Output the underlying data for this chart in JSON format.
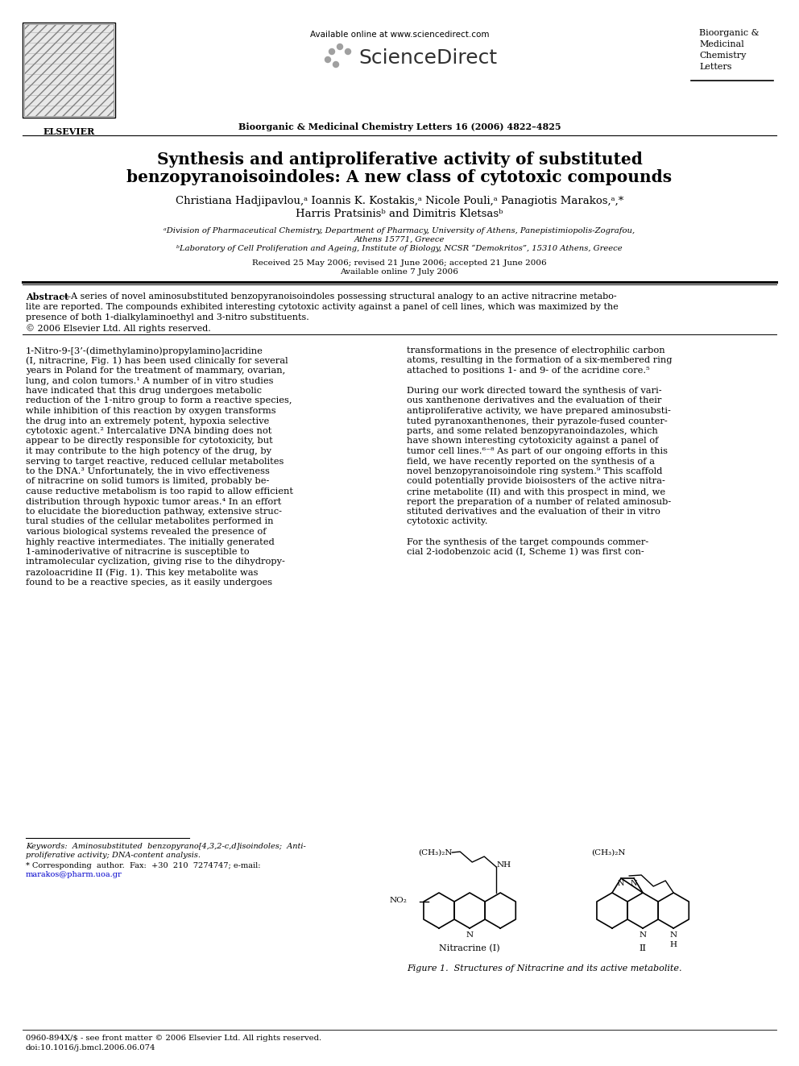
{
  "bg_color": "#ffffff",
  "title_line1": "Synthesis and antiproliferative activity of substituted",
  "title_line2": "benzopyranoisoindoles: A new class of cytotoxic compounds",
  "authors_line1": "Christiana Hadjipavlou,ᵃ Ioannis K. Kostakis,ᵃ Nicole Pouli,ᵃ Panagiotis Marakos,ᵃ,*",
  "authors_line2": "Harris Pratsinisᵇ and Dimitris Kletsasᵇ",
  "affil_a": "ᵃDivision of Pharmaceutical Chemistry, Department of Pharmacy, University of Athens, Panepistimiopolis-Zografou,",
  "affil_a2": "Athens 15771, Greece",
  "affil_b": "ᵇLaboratory of Cell Proliferation and Ageing, Institute of Biology, NCSR “Demokritos”, 15310 Athens, Greece",
  "received": "Received 25 May 2006; revised 21 June 2006; accepted 21 June 2006",
  "available": "Available online 7 July 2006",
  "journal_header": "Bioorganic & Medicinal Chemistry Letters 16 (2006) 4822–4825",
  "available_online": "Available online at www.sciencedirect.com",
  "journal_right_line1": "Bioorganic &",
  "journal_right_line2": "Medicinal",
  "journal_right_line3": "Chemistry",
  "journal_right_line4": "Letters",
  "elsevier_text": "ELSEVIER",
  "abstract_line1": "Abstract—A series of novel aminosubstituted benzopyranoisoindoles possessing structural analogy to an active nitracrine metabo-",
  "abstract_line2": "lite are reported. The compounds exhibited interesting cytotoxic activity against a panel of cell lines, which was maximized by the",
  "abstract_line3": "presence of both 1-dialkylaminoethyl and 3-nitro substituents.",
  "abstract_line4": "© 2006 Elsevier Ltd. All rights reserved.",
  "left_col": [
    "1-Nitro-9-[3’-(dimethylamino)propylamino]acridine",
    "(I, nitracrine, Fig. 1) has been used clinically for several",
    "years in Poland for the treatment of mammary, ovarian,",
    "lung, and colon tumors.¹ A number of in vitro studies",
    "have indicated that this drug undergoes metabolic",
    "reduction of the 1-nitro group to form a reactive species,",
    "while inhibition of this reaction by oxygen transforms",
    "the drug into an extremely potent, hypoxia selective",
    "cytotoxic agent.² Intercalative DNA binding does not",
    "appear to be directly responsible for cytotoxicity, but",
    "it may contribute to the high potency of the drug, by",
    "serving to target reactive, reduced cellular metabolites",
    "to the DNA.³ Unfortunately, the in vivo effectiveness",
    "of nitracrine on solid tumors is limited, probably be-",
    "cause reductive metabolism is too rapid to allow efficient",
    "distribution through hypoxic tumor areas.⁴ In an effort",
    "to elucidate the bioreduction pathway, extensive struc-",
    "tural studies of the cellular metabolites performed in",
    "various biological systems revealed the presence of",
    "highly reactive intermediates. The initially generated",
    "1-aminoderivative of nitracrine is susceptible to",
    "intramolecular cyclization, giving rise to the dihydropy-",
    "razoloacridine II (Fig. 1). This key metabolite was",
    "found to be a reactive species, as it easily undergoes"
  ],
  "right_col": [
    "transformations in the presence of electrophilic carbon",
    "atoms, resulting in the formation of a six-membered ring",
    "attached to positions 1- and 9- of the acridine core.⁵",
    "",
    "During our work directed toward the synthesis of vari-",
    "ous xanthenone derivatives and the evaluation of their",
    "antiproliferative activity, we have prepared aminosubsti-",
    "tuted pyranoxanthenones, their pyrazole-fused counter-",
    "parts, and some related benzopyranoindazoles, which",
    "have shown interesting cytotoxicity against a panel of",
    "tumor cell lines.⁶⁻⁸ As part of our ongoing efforts in this",
    "field, we have recently reported on the synthesis of a",
    "novel benzopyranoisoindole ring system.⁹ This scaffold",
    "could potentially provide bioisosters of the active nitra-",
    "crine metabolite (II) and with this prospect in mind, we",
    "report the preparation of a number of related aminosub-",
    "stituted derivatives and the evaluation of their in vitro",
    "cytotoxic activity.",
    "",
    "For the synthesis of the target compounds commer-",
    "cial 2-iodobenzoic acid (I, Scheme 1) was first con-"
  ],
  "figure_caption": "Figure 1.  Structures of Nitracrine and its active metabolite.",
  "nitracrine_label": "Nitracrine (I)",
  "compound_II_label": "II",
  "keywords_line1": "Keywords:  Aminosubstituted  benzopyrano[4,3,2-c,d]isoindoles;  Anti-",
  "keywords_line2": "proliferative activity; DNA-content analysis.",
  "corresponding_line1": "* Corresponding  author.  Fax:  +30  210  7274747; e-mail:",
  "corresponding_line2": "marakos@pharm.uoa.gr",
  "footer_line1": "0960-894X/$ - see front matter © 2006 Elsevier Ltd. All rights reserved.",
  "footer_line2": "doi:10.1016/j.bmcl.2006.06.074"
}
